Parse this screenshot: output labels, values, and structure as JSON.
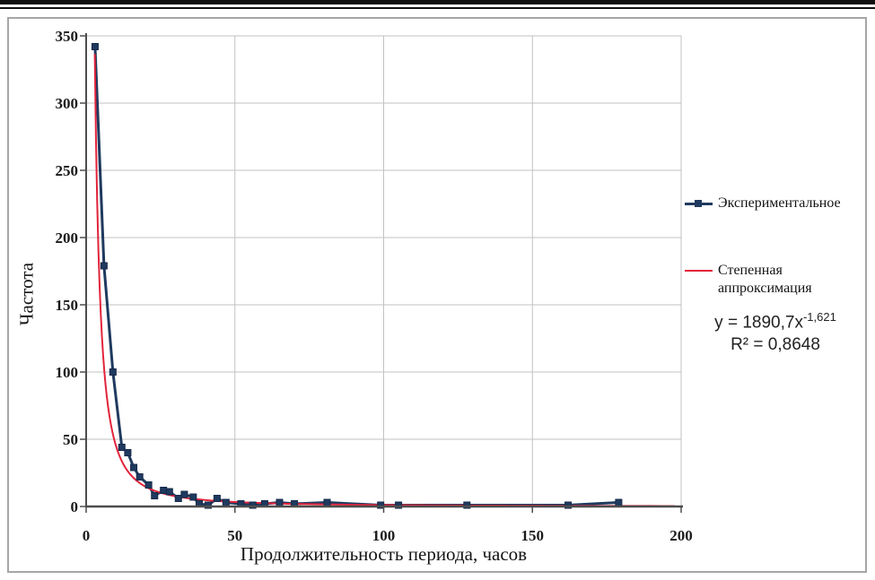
{
  "chart_data": {
    "type": "line",
    "title": "",
    "xlabel": "Продолжительность периода, часов",
    "ylabel": "Частота",
    "xlim": [
      0,
      200
    ],
    "ylim": [
      0,
      350
    ],
    "x_ticks": [
      0,
      50,
      100,
      150,
      200
    ],
    "y_ticks": [
      0,
      50,
      100,
      150,
      200,
      250,
      300,
      350
    ],
    "grid": true,
    "legend_position": "right",
    "series": [
      {
        "name": "Экспериментальное",
        "color": "#1f3a5f",
        "marker": "square",
        "x": [
          3,
          6,
          9,
          12,
          14,
          16,
          18,
          21,
          23,
          26,
          28,
          31,
          33,
          36,
          38,
          41,
          44,
          47,
          52,
          56,
          60,
          65,
          70,
          81,
          99,
          105,
          128,
          162,
          179
        ],
        "y": [
          342,
          179,
          100,
          44,
          40,
          29,
          22,
          16,
          8,
          12,
          11,
          6,
          9,
          7,
          2,
          1,
          6,
          3,
          2,
          1,
          2,
          3,
          2,
          3,
          1,
          1,
          1,
          1,
          3
        ]
      },
      {
        "name": "Степенная аппроксимация",
        "color": "#e2243b",
        "marker": "none",
        "fit": {
          "type": "power",
          "a": 1890.7,
          "b": -1.621,
          "x_start": 2.9,
          "x_end": 200
        }
      }
    ],
    "equation": {
      "base": "y = 1890,7x",
      "exponent": "-1,621"
    },
    "r_squared": "R² = 0,8648",
    "colors": {
      "grid": "#c2c2c2",
      "axis": "#4d4d4d",
      "tick_text": "#1a1a1a",
      "experimental": "#1f3a5f",
      "trendline": "#e2243b"
    }
  }
}
